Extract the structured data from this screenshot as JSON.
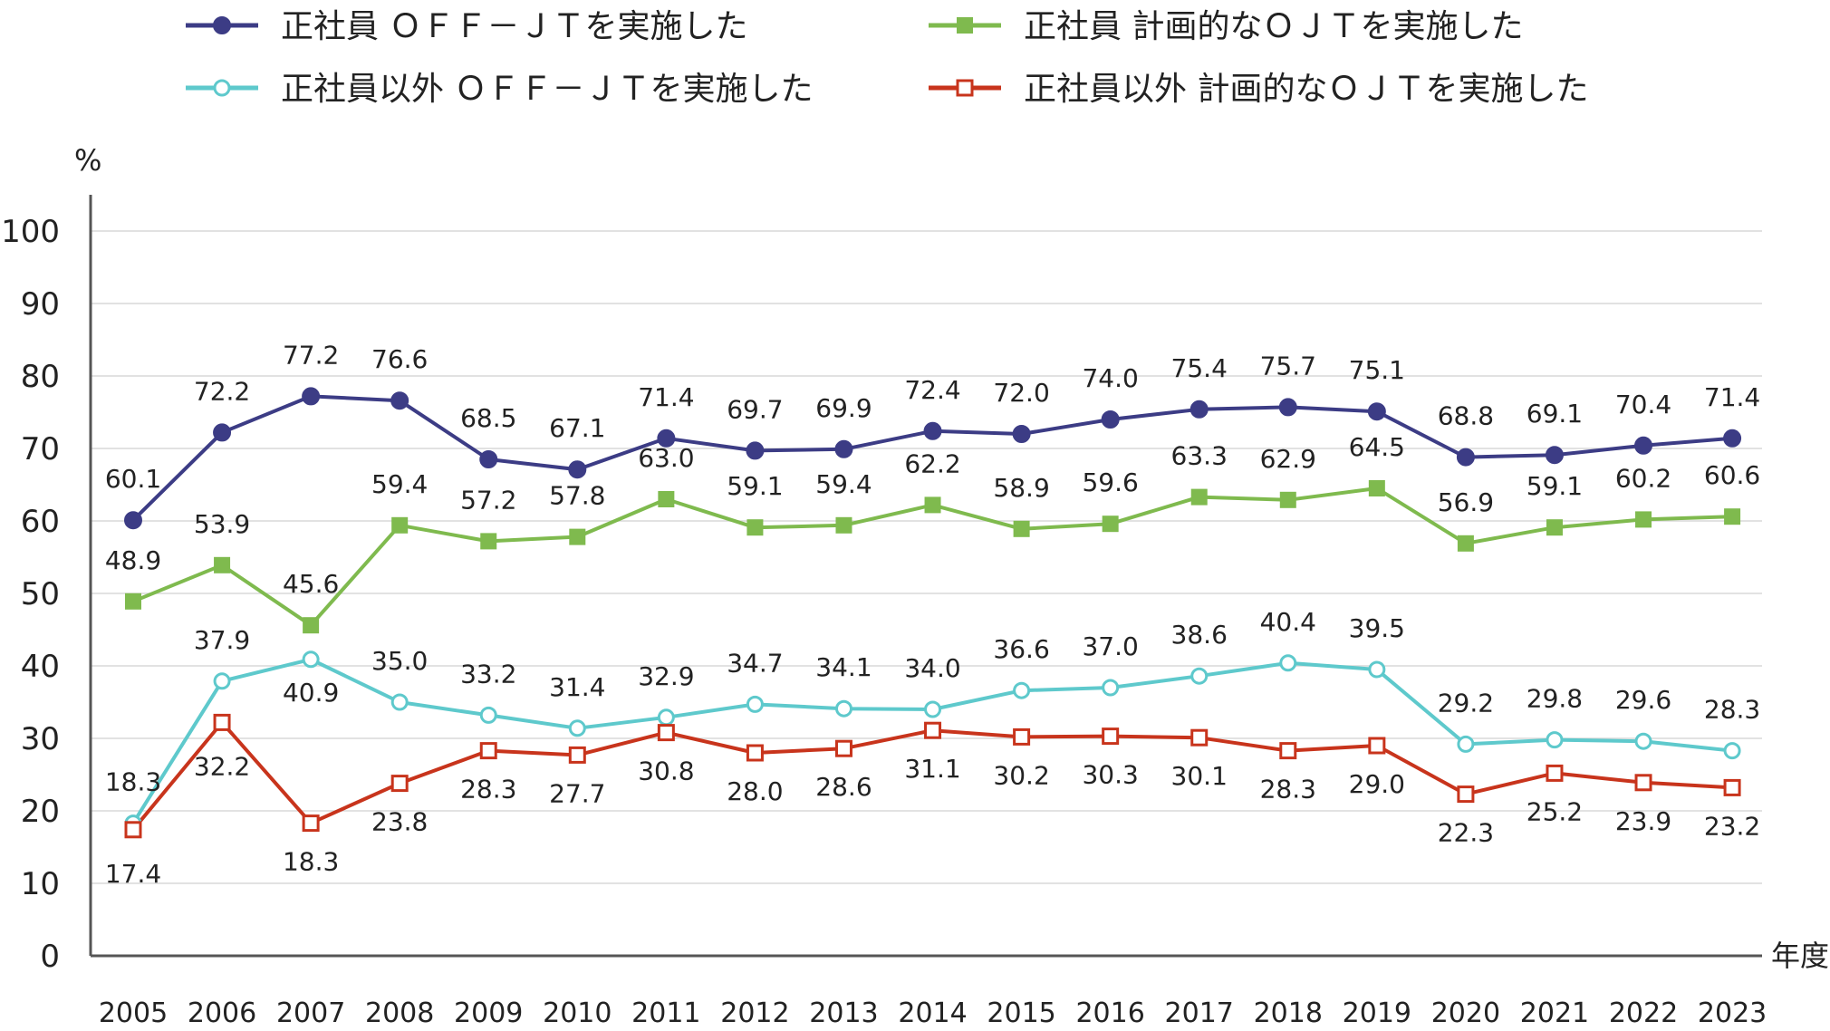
{
  "chart_data": {
    "type": "line",
    "y_unit": "%",
    "x_unit": "年度",
    "ylim": [
      0,
      100
    ],
    "yticks": [
      0,
      10,
      20,
      30,
      40,
      50,
      60,
      70,
      80,
      90,
      100
    ],
    "grid": true,
    "legend_position": "top",
    "x": [
      2005,
      2006,
      2007,
      2008,
      2009,
      2010,
      2011,
      2012,
      2013,
      2014,
      2015,
      2016,
      2017,
      2018,
      2019,
      2020,
      2021,
      2022,
      2023
    ],
    "series": [
      {
        "name": "正社員 ＯＦＦ－ＪＴを実施した",
        "color": "#3c3c85",
        "marker": "circle-filled",
        "values": [
          60.1,
          72.2,
          77.2,
          76.6,
          68.5,
          67.1,
          71.4,
          69.7,
          69.9,
          72.4,
          72.0,
          74.0,
          75.4,
          75.7,
          75.1,
          68.8,
          69.1,
          70.4,
          71.4
        ]
      },
      {
        "name": "正社員 計画的なＯＪＴを実施した",
        "color": "#7fba4e",
        "marker": "square-filled",
        "values": [
          48.9,
          53.9,
          45.6,
          59.4,
          57.2,
          57.8,
          63.0,
          59.1,
          59.4,
          62.2,
          58.9,
          59.6,
          63.3,
          62.9,
          64.5,
          56.9,
          59.1,
          60.2,
          60.6
        ]
      },
      {
        "name": "正社員以外 ＯＦＦ－ＪＴを実施した",
        "color": "#5ec9cc",
        "marker": "circle-open",
        "values": [
          18.3,
          37.9,
          40.9,
          35.0,
          33.2,
          31.4,
          32.9,
          34.7,
          34.1,
          34.0,
          36.6,
          37.0,
          38.6,
          40.4,
          39.5,
          29.2,
          29.8,
          29.6,
          28.3
        ]
      },
      {
        "name": "正社員以外 計画的なＯＪＴを実施した",
        "color": "#c8341c",
        "marker": "square-open",
        "values": [
          17.4,
          32.2,
          18.3,
          23.8,
          28.3,
          27.7,
          30.8,
          28.0,
          28.6,
          31.1,
          30.2,
          30.3,
          30.1,
          28.3,
          29.0,
          22.3,
          25.2,
          23.9,
          23.2
        ]
      }
    ]
  }
}
